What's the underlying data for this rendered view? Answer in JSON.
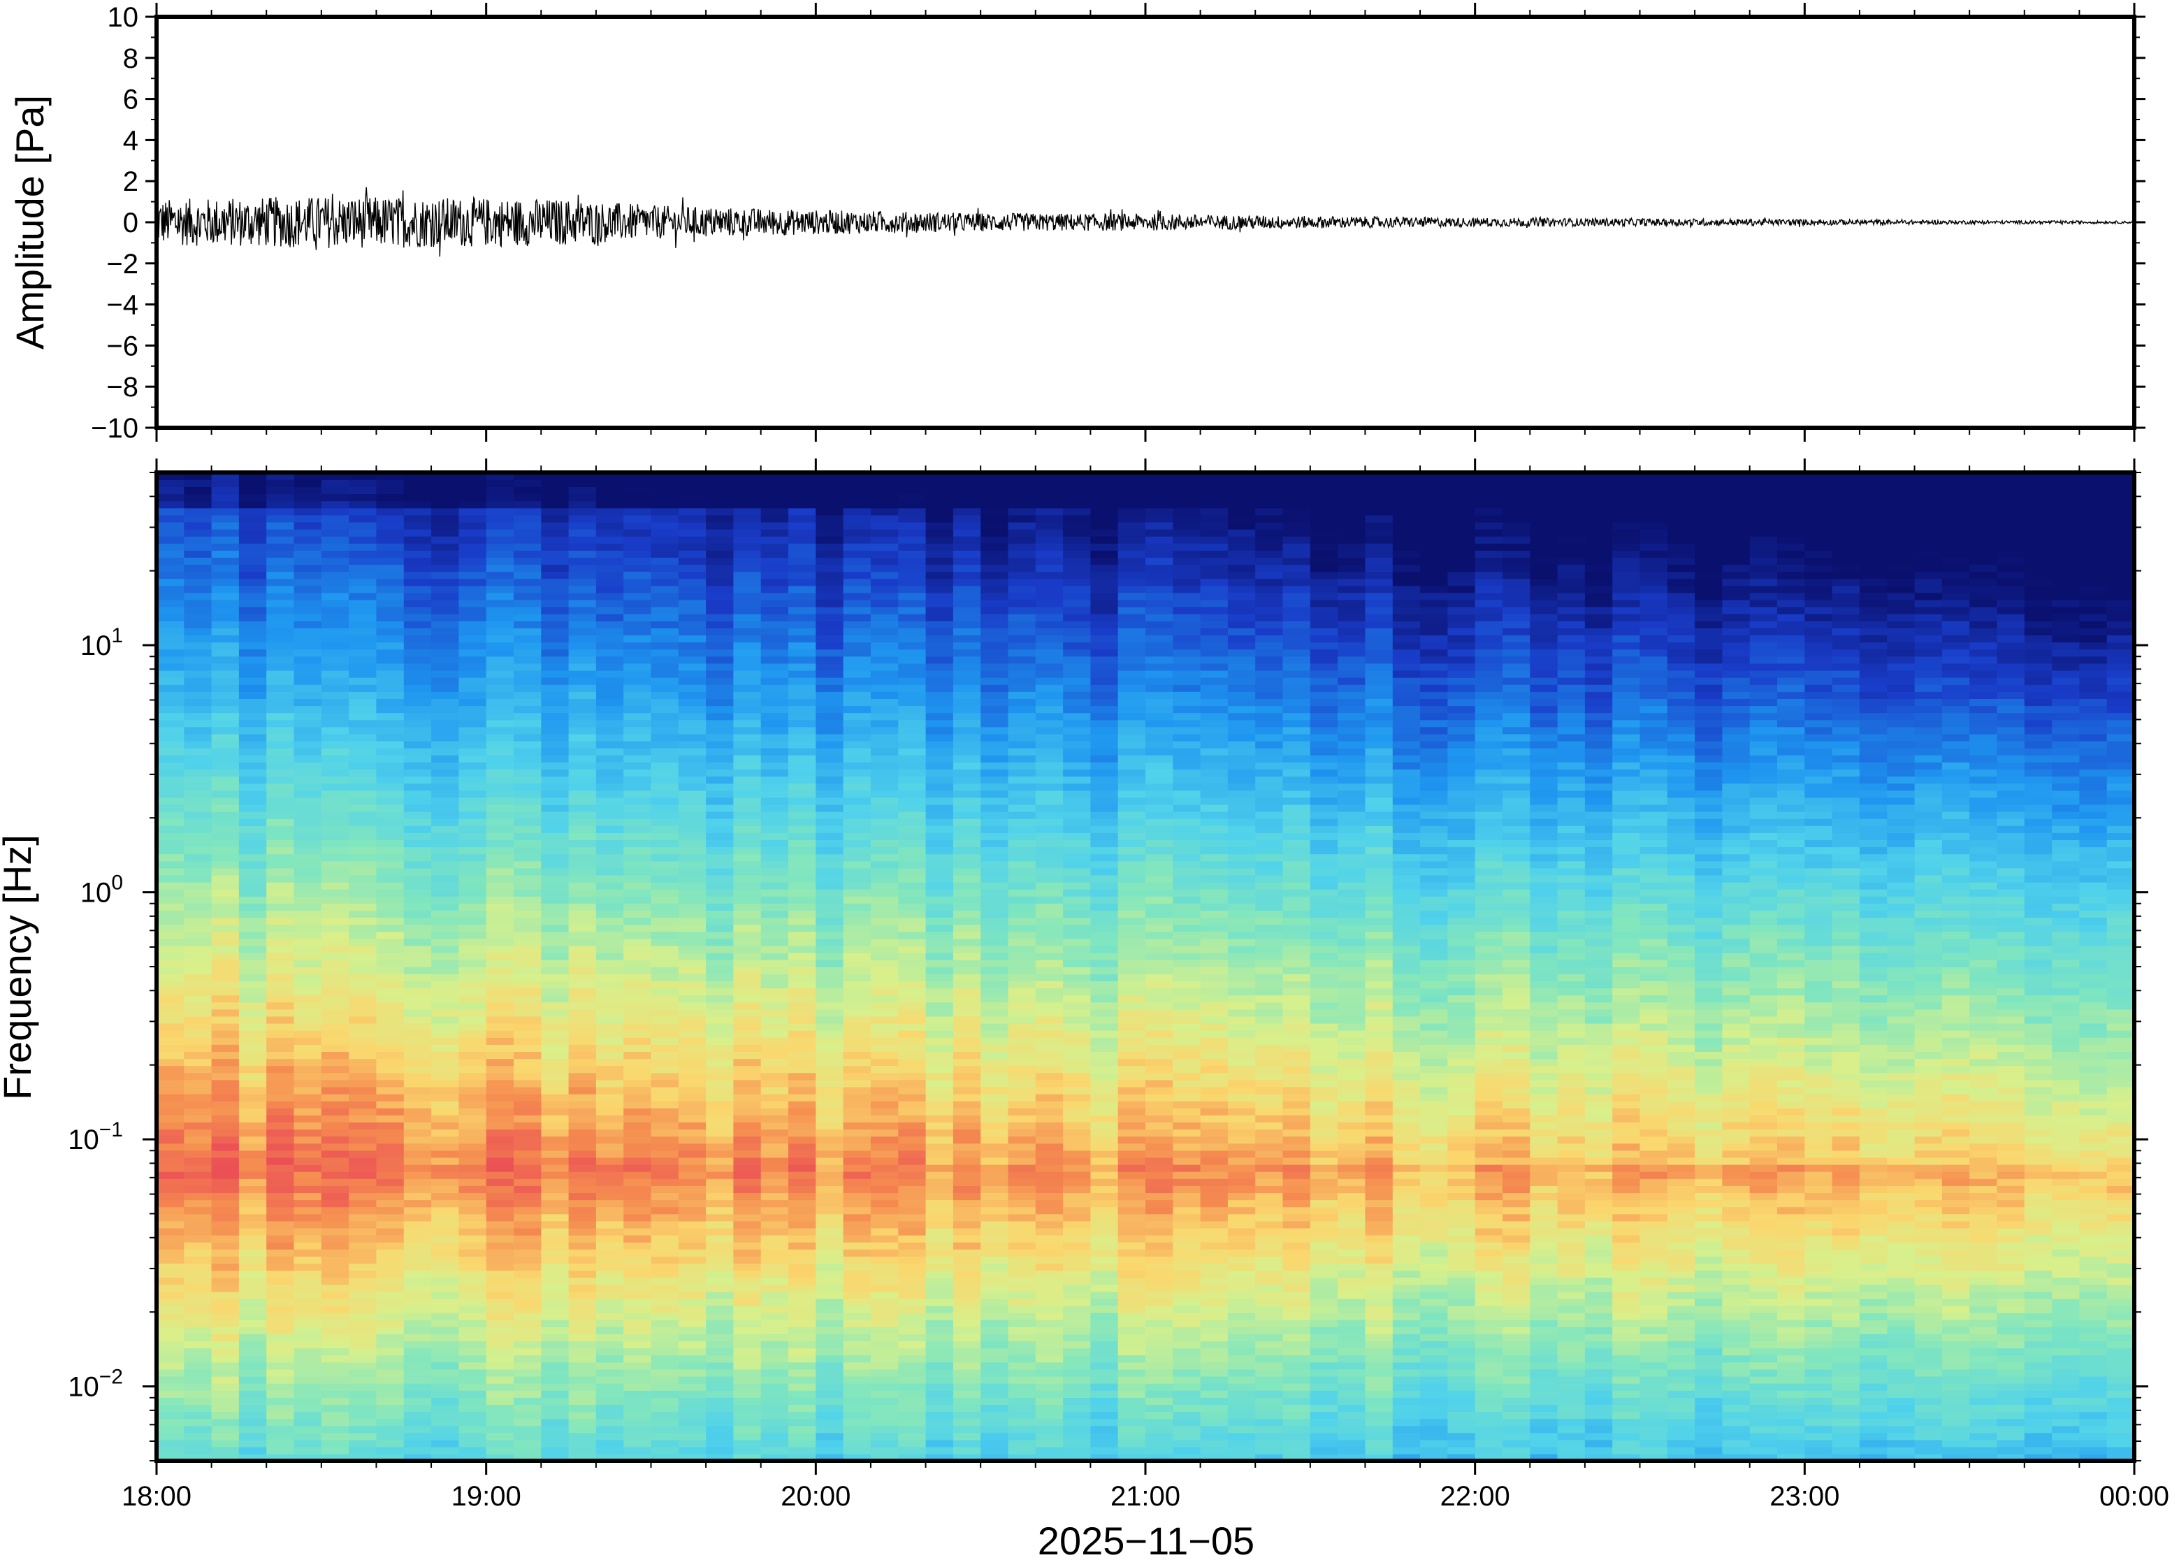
{
  "chart_data": [
    {
      "type": "line",
      "panel": "waveform",
      "ylabel": "Amplitude [Pa]",
      "ylim": [
        -10,
        10
      ],
      "yticks": [
        10,
        8,
        6,
        4,
        2,
        0,
        -2,
        -4,
        -6,
        -8,
        -10
      ],
      "ytick_labels": [
        "10",
        "8",
        "6",
        "4",
        "2",
        "0",
        "−2",
        "−4",
        "−6",
        "−8",
        "−10"
      ],
      "xlim": [
        "2025-11-05T18:00",
        "2025-11-06T00:00"
      ],
      "envelope": {
        "x_hours": [
          18.0,
          18.5,
          19.0,
          19.25,
          19.5,
          20.0,
          20.5,
          21.0,
          21.5,
          22.0,
          22.5,
          23.0,
          23.5,
          24.0
        ],
        "half_amplitude_pa": [
          1.5,
          1.7,
          1.6,
          1.5,
          1.1,
          0.8,
          0.6,
          0.55,
          0.4,
          0.3,
          0.25,
          0.2,
          0.12,
          0.08
        ]
      },
      "peaks": {
        "max": 2.2,
        "min": -1.9
      },
      "grid": false
    },
    {
      "type": "heatmap",
      "panel": "spectrogram",
      "ylabel": "Frequency [Hz]",
      "yscale": "log",
      "ylim_hz": [
        0.005,
        50
      ],
      "yticks_hz": [
        0.01,
        0.1,
        1,
        10
      ],
      "ytick_labels": [
        {
          "base": "10",
          "exp": "−2"
        },
        {
          "base": "10",
          "exp": "−1"
        },
        {
          "base": "10",
          "exp": "0"
        },
        {
          "base": "10",
          "exp": "1"
        }
      ],
      "xlabel": "2025−11−05",
      "xticks": [
        "18:00",
        "19:00",
        "20:00",
        "21:00",
        "22:00",
        "23:00",
        "00:00"
      ],
      "colormap": "jet",
      "colors": {
        "low": "#0a1080",
        "mid": "#60e8d0",
        "high": "#f0585a"
      },
      "time_columns": 72,
      "notes_visible": "energy concentrated near 0.05–0.3 Hz, decreasing with time"
    }
  ]
}
